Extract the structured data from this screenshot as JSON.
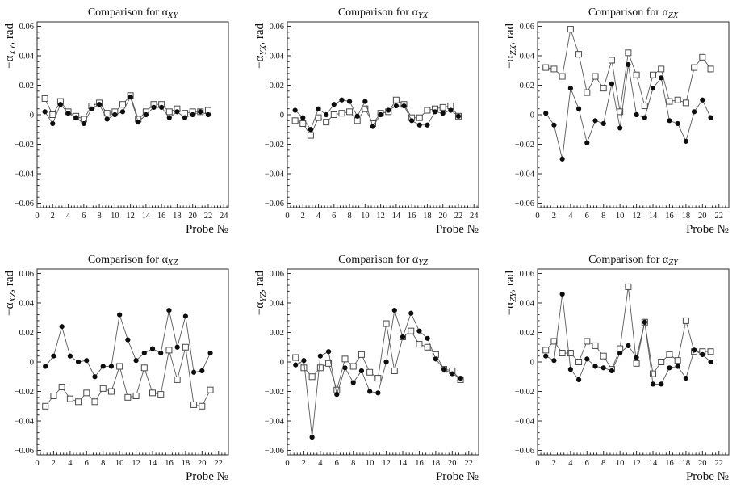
{
  "figure": {
    "background": "#ffffff",
    "text_color": "#111111",
    "frame_color": "#2b2b2b",
    "line_color": "#5a5a5a",
    "circle_fill": "#0d0d0d",
    "square_stroke": "#4a4a4a",
    "square_fill": "#ffffff",
    "title_prefix": "Comparison for α",
    "ylabel_prefix": "−α",
    "ylabel_suffix": ", rad",
    "xlabel": "Probe №",
    "yticks": [
      0.06,
      0.04,
      0.02,
      0,
      -0.02,
      -0.04,
      -0.06
    ]
  },
  "chart_data": [
    {
      "type": "line",
      "title": "Comparison for αXY",
      "sub": "XY",
      "xlabel": "Probe №",
      "ylabel": "−αXY, rad",
      "xlim": [
        0,
        24.6
      ],
      "ylim": [
        -0.063,
        0.063
      ],
      "xtick_max": 24,
      "x": [
        1,
        2,
        3,
        4,
        5,
        6,
        7,
        8,
        9,
        10,
        11,
        12,
        13,
        14,
        15,
        16,
        17,
        18,
        19,
        20,
        21,
        22
      ],
      "series": [
        {
          "name": "filled-circles",
          "marker": "circle",
          "values": [
            0.002,
            -0.006,
            0.007,
            0.001,
            -0.002,
            -0.006,
            0.004,
            0.007,
            -0.003,
            0.0,
            0.002,
            0.012,
            -0.005,
            0.0,
            0.005,
            0.005,
            -0.002,
            0.002,
            -0.002,
            0.0,
            0.002,
            0.0
          ]
        },
        {
          "name": "open-squares",
          "marker": "square",
          "values": [
            0.011,
            0.0,
            0.009,
            0.002,
            -0.001,
            -0.003,
            0.006,
            0.008,
            0.001,
            0.002,
            0.007,
            0.013,
            -0.003,
            0.002,
            0.007,
            0.007,
            0.002,
            0.004,
            0.001,
            0.002,
            0.002,
            0.003
          ]
        }
      ]
    },
    {
      "type": "line",
      "title": "Comparison for αYX",
      "sub": "YX",
      "xlabel": "Probe №",
      "ylabel": "−αYX, rad",
      "xlim": [
        0,
        24.6
      ],
      "ylim": [
        -0.063,
        0.063
      ],
      "xtick_max": 24,
      "x": [
        1,
        2,
        3,
        4,
        5,
        6,
        7,
        8,
        9,
        10,
        11,
        12,
        13,
        14,
        15,
        16,
        17,
        18,
        19,
        20,
        21,
        22
      ],
      "series": [
        {
          "name": "filled-circles",
          "marker": "circle",
          "values": [
            0.003,
            -0.002,
            -0.01,
            0.004,
            0.0,
            0.007,
            0.01,
            0.009,
            -0.001,
            0.009,
            -0.008,
            0.0,
            0.003,
            0.006,
            0.006,
            -0.004,
            -0.007,
            -0.007,
            0.002,
            0.001,
            0.003,
            -0.001
          ]
        },
        {
          "name": "open-squares",
          "marker": "square",
          "values": [
            -0.004,
            -0.006,
            -0.014,
            -0.002,
            -0.005,
            0.0,
            0.001,
            0.002,
            -0.004,
            0.004,
            -0.006,
            0.001,
            0.002,
            0.01,
            0.007,
            -0.002,
            -0.002,
            0.003,
            0.004,
            0.005,
            0.006,
            -0.001
          ]
        }
      ]
    },
    {
      "type": "line",
      "title": "Comparison for αZX",
      "sub": "ZX",
      "xlabel": "Probe №",
      "ylabel": "−αZX, rad",
      "xlim": [
        0,
        23.2
      ],
      "ylim": [
        -0.063,
        0.063
      ],
      "xtick_max": 22,
      "x": [
        1,
        2,
        3,
        4,
        5,
        6,
        7,
        8,
        9,
        10,
        11,
        12,
        13,
        14,
        15,
        16,
        17,
        18,
        19,
        20,
        21
      ],
      "series": [
        {
          "name": "filled-circles",
          "marker": "circle",
          "values": [
            0.001,
            -0.007,
            -0.03,
            0.018,
            0.004,
            -0.019,
            -0.004,
            -0.006,
            0.021,
            -0.009,
            0.034,
            0.0,
            -0.002,
            0.018,
            0.025,
            -0.004,
            -0.006,
            -0.018,
            0.002,
            0.01,
            -0.002
          ]
        },
        {
          "name": "open-squares",
          "marker": "square",
          "values": [
            0.032,
            0.031,
            0.026,
            0.058,
            0.041,
            0.015,
            0.026,
            0.018,
            0.037,
            0.002,
            0.042,
            0.027,
            0.006,
            0.027,
            0.031,
            0.009,
            0.01,
            0.008,
            0.032,
            0.039,
            0.031
          ]
        }
      ]
    },
    {
      "type": "line",
      "title": "Comparison for αXZ",
      "sub": "XZ",
      "xlabel": "Probe №",
      "ylabel": "−αXZ, rad",
      "xlim": [
        0,
        23.2
      ],
      "ylim": [
        -0.063,
        0.063
      ],
      "xtick_max": 22,
      "x": [
        1,
        2,
        3,
        4,
        5,
        6,
        7,
        8,
        9,
        10,
        11,
        12,
        13,
        14,
        15,
        16,
        17,
        18,
        19,
        20,
        21
      ],
      "series": [
        {
          "name": "filled-circles",
          "marker": "circle",
          "values": [
            -0.003,
            0.004,
            0.024,
            0.004,
            0.0,
            0.001,
            -0.01,
            -0.003,
            -0.003,
            0.032,
            0.015,
            0.001,
            0.006,
            0.009,
            0.006,
            0.035,
            0.01,
            0.031,
            -0.007,
            -0.006,
            0.006
          ]
        },
        {
          "name": "open-squares",
          "marker": "square",
          "values": [
            -0.03,
            -0.023,
            -0.017,
            -0.025,
            -0.027,
            -0.021,
            -0.027,
            -0.018,
            -0.02,
            -0.003,
            -0.024,
            -0.023,
            -0.004,
            -0.021,
            -0.022,
            0.008,
            -0.012,
            0.01,
            -0.029,
            -0.03,
            -0.019
          ]
        }
      ]
    },
    {
      "type": "line",
      "title": "Comparison for αYZ",
      "sub": "YZ",
      "xlabel": "Probe №",
      "ylabel": "−αYZ, rad",
      "xlim": [
        0,
        23.2
      ],
      "ylim": [
        -0.063,
        0.063
      ],
      "xtick_max": 22,
      "x": [
        1,
        2,
        3,
        4,
        5,
        6,
        7,
        8,
        9,
        10,
        11,
        12,
        13,
        14,
        15,
        16,
        17,
        18,
        19,
        20,
        21
      ],
      "series": [
        {
          "name": "filled-circles",
          "marker": "circle",
          "values": [
            -0.002,
            0.001,
            -0.051,
            0.004,
            0.007,
            -0.022,
            -0.004,
            -0.014,
            -0.006,
            -0.02,
            -0.021,
            0.0,
            0.035,
            0.017,
            0.033,
            0.021,
            0.016,
            0.002,
            -0.005,
            -0.008,
            -0.011
          ]
        },
        {
          "name": "open-squares",
          "marker": "square",
          "values": [
            0.003,
            -0.004,
            -0.01,
            -0.004,
            -0.001,
            -0.019,
            0.002,
            -0.003,
            0.005,
            -0.007,
            -0.011,
            0.026,
            -0.006,
            0.017,
            0.021,
            0.012,
            0.01,
            0.005,
            -0.005,
            -0.006,
            -0.012
          ]
        }
      ]
    },
    {
      "type": "line",
      "title": "Comparison for αZY",
      "sub": "ZY",
      "xlabel": "Probe №",
      "ylabel": "−αZY, rad",
      "xlim": [
        0,
        23.2
      ],
      "ylim": [
        -0.063,
        0.063
      ],
      "xtick_max": 22,
      "x": [
        1,
        2,
        3,
        4,
        5,
        6,
        7,
        8,
        9,
        10,
        11,
        12,
        13,
        14,
        15,
        16,
        17,
        18,
        19,
        20,
        21
      ],
      "series": [
        {
          "name": "filled-circles",
          "marker": "circle",
          "values": [
            0.004,
            0.001,
            0.046,
            -0.005,
            -0.012,
            0.002,
            -0.003,
            -0.004,
            -0.006,
            0.006,
            0.011,
            0.003,
            0.027,
            -0.015,
            -0.015,
            -0.004,
            -0.003,
            -0.011,
            0.008,
            0.005,
            0.0
          ]
        },
        {
          "name": "open-squares",
          "marker": "square",
          "values": [
            0.008,
            0.014,
            0.006,
            0.006,
            0.0,
            0.014,
            0.011,
            0.004,
            -0.005,
            0.009,
            0.051,
            -0.001,
            0.027,
            -0.008,
            0.0,
            0.005,
            0.001,
            0.028,
            0.007,
            0.007,
            0.007
          ]
        }
      ]
    }
  ]
}
